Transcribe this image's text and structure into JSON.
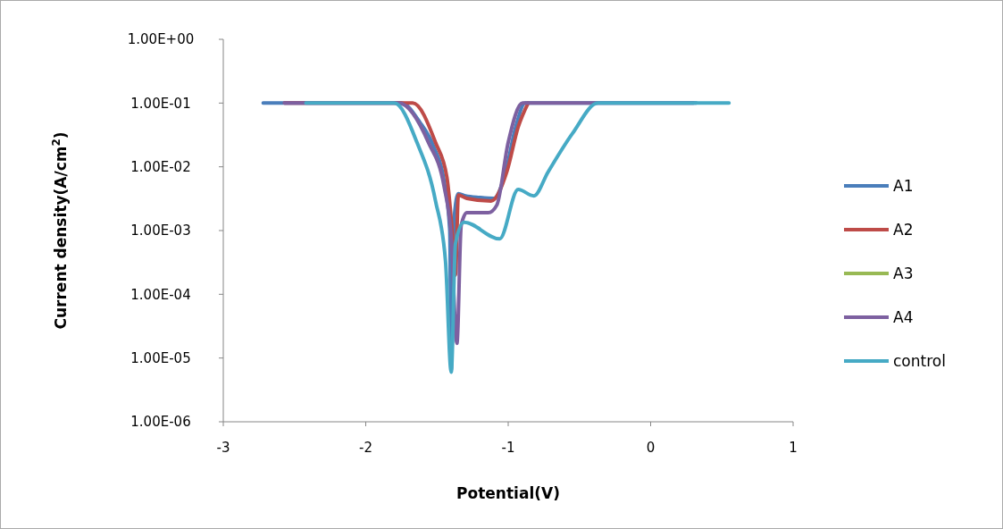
{
  "chart_data": {
    "type": "line",
    "xlabel": "Potential(V)",
    "ylabel": "Current density(A/cm$^{2}$)",
    "log": "y",
    "grid": false,
    "legend": "right",
    "marker": "none",
    "line_style": "solid",
    "xlim": [
      -3,
      1
    ],
    "xticks": [
      -3,
      -2,
      -1,
      0,
      1
    ],
    "ylim": [
      1e-06,
      1
    ],
    "yticks": [
      {
        "value": 1e-06,
        "label": "1.00E-06"
      },
      {
        "value": 1e-05,
        "label": "1.00E-05"
      },
      {
        "value": 0.0001,
        "label": "1.00E-04"
      },
      {
        "value": 0.001,
        "label": "1.00E-03"
      },
      {
        "value": 0.01,
        "label": "1.00E-02"
      },
      {
        "value": 0.1,
        "label": "1.00E-01"
      },
      {
        "value": 1,
        "label": "1.00E+00"
      }
    ],
    "series": [
      {
        "name": "A1",
        "color": "#4a7ebb",
        "x": [
          -2.72,
          -1.75,
          -1.62,
          -1.52,
          -1.45,
          -1.41,
          -1.4,
          -1.38,
          -1.35,
          -1.3,
          -1.2,
          -1.1,
          -1.02,
          -0.95,
          -0.88,
          0.32
        ],
        "values": [
          0.1,
          0.1,
          0.05,
          0.02,
          0.006,
          0.001,
          6.5e-06,
          0.0015,
          0.0038,
          0.0035,
          0.0033,
          0.0032,
          0.008,
          0.04,
          0.1,
          0.1
        ]
      },
      {
        "name": "A2",
        "color": "#be4b48",
        "x": [
          -2.57,
          -1.67,
          -1.51,
          -1.43,
          -1.39,
          -1.37,
          -1.35,
          -1.29,
          -1.12,
          -1.01,
          -0.93,
          -0.86
        ],
        "values": [
          0.1,
          0.1,
          0.024,
          0.0068,
          0.0008,
          0.0002,
          0.0036,
          0.0032,
          0.0029,
          0.0083,
          0.042,
          0.1
        ]
      },
      {
        "name": "A3",
        "color": "#98b954"
      },
      {
        "name": "A4",
        "color": "#7d60a0",
        "x": [
          -2.57,
          -1.77,
          -1.56,
          -1.45,
          -1.4,
          -1.36,
          -1.33,
          -1.29,
          -1.14,
          -1.08,
          -1,
          -0.9,
          0.3
        ],
        "values": [
          0.1,
          0.1,
          0.024,
          0.0049,
          0.0008,
          1.7e-05,
          0.0012,
          0.0019,
          0.0019,
          0.0025,
          0.024,
          0.1,
          0.1
        ]
      },
      {
        "name": "control",
        "color": "#46aac5",
        "x": [
          -2.42,
          -1.8,
          -1.64,
          -1.51,
          -1.44,
          -1.4,
          -1.37,
          -1.31,
          -1.06,
          -0.93,
          -0.82,
          -0.72,
          -0.55,
          -0.37,
          0.55
        ],
        "values": [
          0.1,
          0.1,
          0.024,
          0.0029,
          0.00033,
          6e-06,
          0.00063,
          0.00135,
          0.00074,
          0.0044,
          0.0035,
          0.0083,
          0.033,
          0.1,
          0.1
        ]
      }
    ]
  }
}
